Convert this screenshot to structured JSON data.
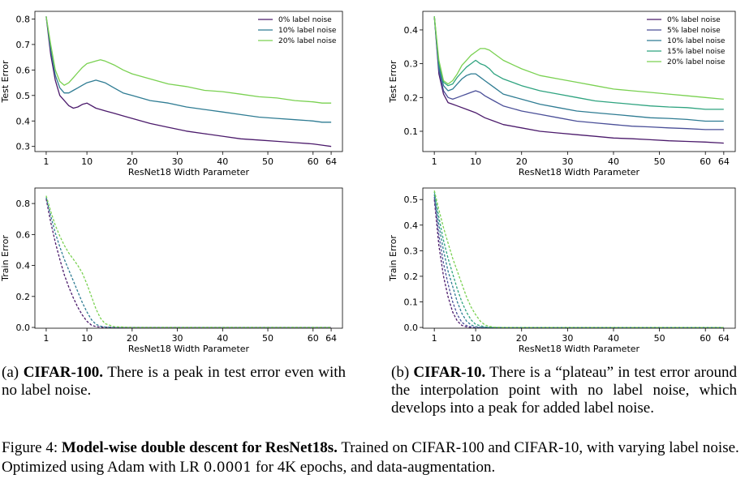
{
  "caption_a": {
    "prefix": "(a) ",
    "dataset": "CIFAR-100.",
    "text": " There is a peak in test error even with no label noise."
  },
  "caption_b": {
    "prefix": "(b) ",
    "dataset": "CIFAR-10.",
    "text": " There is a “plateau” in test error around the interpolation point with no label noise, which develops into a peak for added label noise."
  },
  "figure_caption": {
    "label": "Figure 4: ",
    "title": "Model-wise double descent for ResNet18s.",
    "text": " Trained on CIFAR-100 and CIFAR-10, with varying label noise. Optimized using Adam with LR ",
    "lr": "0.0001",
    "text2": " for 4K epochs, and data-augmentation."
  },
  "colors": {
    "noise0": "#4b1a6b",
    "noise5": "#4a4f98",
    "noise10": "#2f7c93",
    "noise15": "#2ea37f",
    "noise20": "#7ad151"
  },
  "chart_data": [
    {
      "id": "cifar100-test",
      "type": "line",
      "xlabel": "ResNet18 Width Parameter",
      "ylabel": "Test Error",
      "xticks": [
        1,
        10,
        20,
        30,
        40,
        50,
        60,
        64
      ],
      "xtick_labels": [
        "1",
        "10",
        "20",
        "30",
        "40",
        "50",
        "60",
        "64"
      ],
      "yticks": [
        0.3,
        0.4,
        0.5,
        0.6,
        0.7,
        0.8
      ],
      "ytick_labels": [
        "0.3",
        "0.4",
        "0.5",
        "0.6",
        "0.7",
        "0.8"
      ],
      "xlim": [
        -1.5,
        66.5
      ],
      "ylim": [
        0.28,
        0.83
      ],
      "legend": "top-right",
      "dashed": false,
      "series": [
        {
          "name": "0% label noise",
          "color_key": "noise0",
          "x": [
            1,
            2,
            3,
            4,
            5,
            6,
            7,
            8,
            9,
            10,
            12,
            14,
            16,
            18,
            20,
            24,
            28,
            32,
            36,
            40,
            44,
            48,
            52,
            56,
            60,
            62,
            64
          ],
          "y": [
            0.81,
            0.66,
            0.56,
            0.5,
            0.48,
            0.46,
            0.45,
            0.455,
            0.465,
            0.47,
            0.45,
            0.44,
            0.43,
            0.42,
            0.41,
            0.39,
            0.375,
            0.36,
            0.35,
            0.34,
            0.33,
            0.325,
            0.32,
            0.315,
            0.31,
            0.305,
            0.3
          ]
        },
        {
          "name": "10% label noise",
          "color_key": "noise10",
          "x": [
            1,
            2,
            3,
            4,
            5,
            6,
            7,
            8,
            9,
            10,
            11,
            12,
            13,
            14,
            16,
            18,
            20,
            24,
            28,
            32,
            36,
            40,
            44,
            48,
            52,
            56,
            60,
            62,
            64
          ],
          "y": [
            0.81,
            0.68,
            0.58,
            0.53,
            0.51,
            0.51,
            0.52,
            0.53,
            0.54,
            0.55,
            0.555,
            0.56,
            0.555,
            0.55,
            0.53,
            0.51,
            0.5,
            0.48,
            0.47,
            0.455,
            0.445,
            0.435,
            0.425,
            0.415,
            0.41,
            0.405,
            0.4,
            0.395,
            0.395
          ]
        },
        {
          "name": "20% label noise",
          "color_key": "noise20",
          "x": [
            1,
            2,
            3,
            4,
            5,
            6,
            7,
            8,
            9,
            10,
            11,
            12,
            13,
            14,
            16,
            18,
            20,
            24,
            28,
            32,
            36,
            40,
            44,
            48,
            52,
            56,
            60,
            62,
            64
          ],
          "y": [
            0.81,
            0.7,
            0.6,
            0.555,
            0.54,
            0.55,
            0.57,
            0.59,
            0.61,
            0.625,
            0.63,
            0.635,
            0.64,
            0.635,
            0.62,
            0.6,
            0.585,
            0.565,
            0.545,
            0.535,
            0.52,
            0.515,
            0.505,
            0.495,
            0.49,
            0.48,
            0.475,
            0.47,
            0.47
          ]
        }
      ]
    },
    {
      "id": "cifar10-test",
      "type": "line",
      "xlabel": "ResNet18 Width Parameter",
      "ylabel": "Test Error",
      "xticks": [
        1,
        10,
        20,
        30,
        40,
        50,
        60,
        64
      ],
      "xtick_labels": [
        "1",
        "10",
        "20",
        "30",
        "40",
        "50",
        "60",
        "64"
      ],
      "yticks": [
        0.1,
        0.2,
        0.3,
        0.4
      ],
      "ytick_labels": [
        "0.1",
        "0.2",
        "0.3",
        "0.4"
      ],
      "xlim": [
        -1.5,
        66.5
      ],
      "ylim": [
        0.04,
        0.455
      ],
      "legend": "top-right",
      "dashed": false,
      "series": [
        {
          "name": "0% label noise",
          "color_key": "noise0",
          "x": [
            1,
            2,
            3,
            4,
            5,
            6,
            8,
            10,
            12,
            14,
            16,
            20,
            24,
            28,
            32,
            36,
            40,
            44,
            48,
            52,
            56,
            60,
            64
          ],
          "y": [
            0.44,
            0.27,
            0.21,
            0.185,
            0.18,
            0.175,
            0.165,
            0.155,
            0.14,
            0.13,
            0.12,
            0.11,
            0.1,
            0.095,
            0.09,
            0.085,
            0.08,
            0.078,
            0.075,
            0.072,
            0.07,
            0.068,
            0.065
          ]
        },
        {
          "name": "5% label noise",
          "color_key": "noise5",
          "x": [
            1,
            2,
            3,
            4,
            5,
            6,
            7,
            8,
            9,
            10,
            11,
            12,
            14,
            16,
            20,
            24,
            28,
            32,
            36,
            40,
            44,
            48,
            52,
            56,
            60,
            64
          ],
          "y": [
            0.44,
            0.28,
            0.22,
            0.2,
            0.195,
            0.2,
            0.205,
            0.21,
            0.215,
            0.22,
            0.215,
            0.205,
            0.19,
            0.175,
            0.16,
            0.15,
            0.14,
            0.13,
            0.125,
            0.12,
            0.115,
            0.113,
            0.11,
            0.108,
            0.105,
            0.105
          ]
        },
        {
          "name": "10% label noise",
          "color_key": "noise10",
          "x": [
            1,
            2,
            3,
            4,
            5,
            6,
            7,
            8,
            9,
            10,
            11,
            12,
            14,
            16,
            20,
            24,
            28,
            32,
            36,
            40,
            44,
            48,
            52,
            56,
            60,
            64
          ],
          "y": [
            0.44,
            0.29,
            0.235,
            0.22,
            0.225,
            0.24,
            0.255,
            0.265,
            0.27,
            0.27,
            0.26,
            0.25,
            0.23,
            0.21,
            0.195,
            0.18,
            0.17,
            0.16,
            0.155,
            0.15,
            0.145,
            0.14,
            0.138,
            0.135,
            0.13,
            0.13
          ]
        },
        {
          "name": "15% label noise",
          "color_key": "noise15",
          "x": [
            1,
            2,
            3,
            4,
            5,
            6,
            7,
            8,
            9,
            10,
            11,
            12,
            13,
            14,
            16,
            20,
            24,
            28,
            32,
            36,
            40,
            44,
            48,
            52,
            56,
            60,
            64
          ],
          "y": [
            0.44,
            0.3,
            0.245,
            0.235,
            0.24,
            0.26,
            0.275,
            0.29,
            0.3,
            0.31,
            0.3,
            0.295,
            0.285,
            0.27,
            0.255,
            0.235,
            0.22,
            0.21,
            0.2,
            0.19,
            0.185,
            0.18,
            0.175,
            0.172,
            0.17,
            0.165,
            0.165
          ]
        },
        {
          "name": "20% label noise",
          "color_key": "noise20",
          "x": [
            1,
            2,
            3,
            4,
            5,
            6,
            7,
            8,
            9,
            10,
            11,
            12,
            13,
            14,
            16,
            20,
            24,
            28,
            32,
            36,
            40,
            44,
            48,
            52,
            56,
            60,
            64
          ],
          "y": [
            0.44,
            0.31,
            0.25,
            0.24,
            0.25,
            0.27,
            0.295,
            0.31,
            0.325,
            0.335,
            0.345,
            0.345,
            0.34,
            0.33,
            0.31,
            0.285,
            0.265,
            0.255,
            0.245,
            0.235,
            0.225,
            0.22,
            0.215,
            0.21,
            0.205,
            0.2,
            0.195
          ]
        }
      ]
    },
    {
      "id": "cifar100-train",
      "type": "line",
      "xlabel": "ResNet18 Width Parameter",
      "ylabel": "Train Error",
      "xticks": [
        1,
        10,
        20,
        30,
        40,
        50,
        60,
        64
      ],
      "xtick_labels": [
        "1",
        "10",
        "20",
        "30",
        "40",
        "50",
        "60",
        "64"
      ],
      "yticks": [
        0.0,
        0.2,
        0.4,
        0.6,
        0.8
      ],
      "ytick_labels": [
        "0.0",
        "0.2",
        "0.4",
        "0.6",
        "0.8"
      ],
      "xlim": [
        -1.5,
        66.5
      ],
      "ylim": [
        -0.005,
        0.9
      ],
      "legend": "none",
      "dashed": true,
      "series": [
        {
          "name": "0% label noise",
          "color_key": "noise0",
          "x": [
            1,
            2,
            3,
            4,
            5,
            6,
            7,
            8,
            9,
            10,
            11,
            12,
            13,
            14,
            16,
            20,
            30,
            40,
            50,
            64
          ],
          "y": [
            0.83,
            0.68,
            0.55,
            0.44,
            0.34,
            0.26,
            0.19,
            0.13,
            0.08,
            0.04,
            0.015,
            0.005,
            0.002,
            0.001,
            0,
            0,
            0,
            0,
            0,
            0
          ]
        },
        {
          "name": "10% label noise",
          "color_key": "noise10",
          "x": [
            1,
            2,
            3,
            4,
            5,
            6,
            7,
            8,
            9,
            10,
            11,
            12,
            13,
            14,
            16,
            20,
            30,
            40,
            50,
            64
          ],
          "y": [
            0.84,
            0.72,
            0.61,
            0.52,
            0.44,
            0.37,
            0.3,
            0.23,
            0.16,
            0.1,
            0.05,
            0.02,
            0.008,
            0.003,
            0,
            0,
            0,
            0,
            0,
            0
          ]
        },
        {
          "name": "20% label noise",
          "color_key": "noise20",
          "x": [
            1,
            2,
            3,
            4,
            5,
            6,
            7,
            8,
            9,
            10,
            11,
            12,
            13,
            14,
            16,
            20,
            30,
            40,
            50,
            64
          ],
          "y": [
            0.85,
            0.75,
            0.66,
            0.59,
            0.53,
            0.48,
            0.44,
            0.4,
            0.35,
            0.28,
            0.2,
            0.12,
            0.06,
            0.025,
            0.005,
            0,
            0,
            0,
            0,
            0
          ]
        }
      ]
    },
    {
      "id": "cifar10-train",
      "type": "line",
      "xlabel": "ResNet18 Width Parameter",
      "ylabel": "Train Error",
      "xticks": [
        1,
        10,
        20,
        30,
        40,
        50,
        60,
        64
      ],
      "xtick_labels": [
        "1",
        "10",
        "20",
        "30",
        "40",
        "50",
        "60",
        "64"
      ],
      "yticks": [
        0.0,
        0.1,
        0.2,
        0.3,
        0.4,
        0.5
      ],
      "ytick_labels": [
        "0.0",
        "0.1",
        "0.2",
        "0.3",
        "0.4",
        "0.5"
      ],
      "xlim": [
        -1.5,
        66.5
      ],
      "ylim": [
        -0.003,
        0.545
      ],
      "legend": "none",
      "dashed": true,
      "series": [
        {
          "name": "0% label noise",
          "color_key": "noise0",
          "x": [
            1,
            2,
            3,
            4,
            5,
            6,
            7,
            8,
            9,
            10,
            12,
            14,
            16,
            20,
            30,
            40,
            50,
            64
          ],
          "y": [
            0.5,
            0.32,
            0.2,
            0.12,
            0.06,
            0.025,
            0.008,
            0.002,
            0,
            0,
            0,
            0,
            0,
            0,
            0,
            0,
            0,
            0
          ]
        },
        {
          "name": "5% label noise",
          "color_key": "noise5",
          "x": [
            1,
            2,
            3,
            4,
            5,
            6,
            7,
            8,
            9,
            10,
            12,
            14,
            16,
            20,
            30,
            40,
            50,
            64
          ],
          "y": [
            0.51,
            0.36,
            0.25,
            0.17,
            0.1,
            0.05,
            0.02,
            0.007,
            0.002,
            0,
            0,
            0,
            0,
            0,
            0,
            0,
            0,
            0
          ]
        },
        {
          "name": "10% label noise",
          "color_key": "noise10",
          "x": [
            1,
            2,
            3,
            4,
            5,
            6,
            7,
            8,
            9,
            10,
            12,
            14,
            16,
            20,
            30,
            40,
            50,
            64
          ],
          "y": [
            0.52,
            0.4,
            0.3,
            0.22,
            0.16,
            0.1,
            0.055,
            0.025,
            0.01,
            0.003,
            0,
            0,
            0,
            0,
            0,
            0,
            0,
            0
          ]
        },
        {
          "name": "15% label noise",
          "color_key": "noise15",
          "x": [
            1,
            2,
            3,
            4,
            5,
            6,
            7,
            8,
            9,
            10,
            12,
            14,
            16,
            20,
            30,
            40,
            50,
            64
          ],
          "y": [
            0.53,
            0.43,
            0.34,
            0.27,
            0.21,
            0.15,
            0.1,
            0.06,
            0.03,
            0.012,
            0.002,
            0,
            0,
            0,
            0,
            0,
            0,
            0
          ]
        },
        {
          "name": "20% label noise",
          "color_key": "noise20",
          "x": [
            1,
            2,
            3,
            4,
            5,
            6,
            7,
            8,
            9,
            10,
            11,
            12,
            13,
            14,
            16,
            20,
            30,
            40,
            50,
            64
          ],
          "y": [
            0.535,
            0.46,
            0.39,
            0.33,
            0.27,
            0.22,
            0.17,
            0.12,
            0.08,
            0.05,
            0.025,
            0.01,
            0.004,
            0.001,
            0,
            0,
            0,
            0,
            0,
            0
          ]
        }
      ]
    }
  ]
}
